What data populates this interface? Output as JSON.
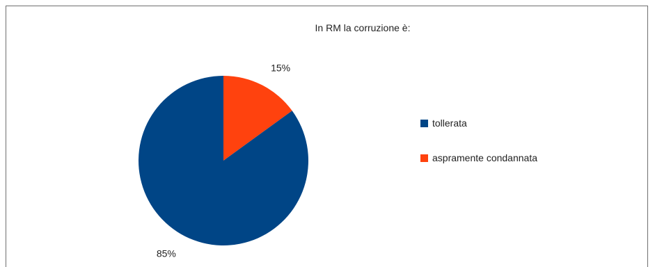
{
  "chart_data": {
    "type": "pie",
    "title": "In RM la corruzione è:",
    "categories": [
      "tollerata",
      "aspramente condannata"
    ],
    "values": [
      85,
      15
    ],
    "value_labels": [
      "85%",
      "15%"
    ],
    "colors": [
      "#004586",
      "#ff420e"
    ],
    "legend_position": "right",
    "start": "top",
    "direction": "clockwise",
    "order": [
      1,
      0
    ]
  }
}
